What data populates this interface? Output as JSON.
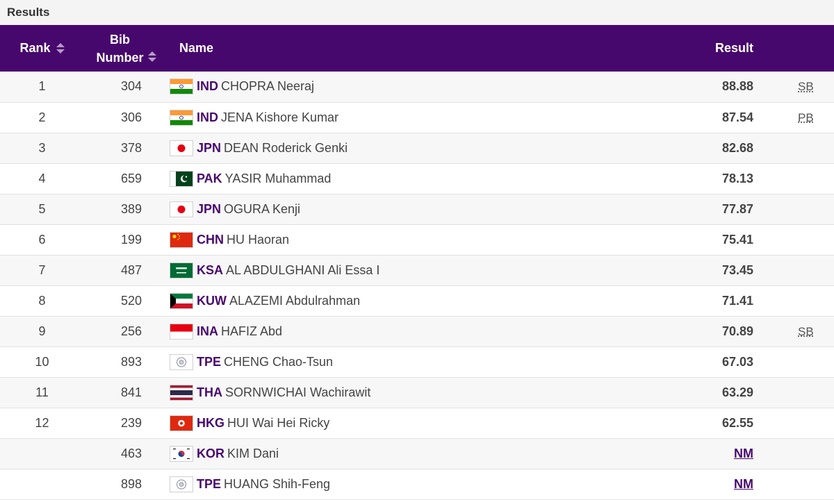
{
  "header": {
    "title": "Results"
  },
  "columns": {
    "rank": "Rank",
    "bib_line1": "Bib",
    "bib_line2": "Number",
    "name": "Name",
    "result": "Result"
  },
  "colors": {
    "header_bg": "#47086d",
    "accent": "#47086d"
  },
  "rows": [
    {
      "rank": "1",
      "bib": "304",
      "country": "IND",
      "flag": "ind",
      "name": "CHOPRA Neeraj",
      "result": "88.88",
      "note": "SB"
    },
    {
      "rank": "2",
      "bib": "306",
      "country": "IND",
      "flag": "ind",
      "name": "JENA Kishore Kumar",
      "result": "87.54",
      "note": "PB"
    },
    {
      "rank": "3",
      "bib": "378",
      "country": "JPN",
      "flag": "jpn",
      "name": "DEAN Roderick Genki",
      "result": "82.68",
      "note": ""
    },
    {
      "rank": "4",
      "bib": "659",
      "country": "PAK",
      "flag": "pak",
      "name": "YASIR Muhammad",
      "result": "78.13",
      "note": ""
    },
    {
      "rank": "5",
      "bib": "389",
      "country": "JPN",
      "flag": "jpn",
      "name": "OGURA Kenji",
      "result": "77.87",
      "note": ""
    },
    {
      "rank": "6",
      "bib": "199",
      "country": "CHN",
      "flag": "chn",
      "name": "HU Haoran",
      "result": "75.41",
      "note": ""
    },
    {
      "rank": "7",
      "bib": "487",
      "country": "KSA",
      "flag": "ksa",
      "name": "AL ABDULGHANI Ali Essa I",
      "result": "73.45",
      "note": ""
    },
    {
      "rank": "8",
      "bib": "520",
      "country": "KUW",
      "flag": "kuw",
      "name": "ALAZEMI Abdulrahman",
      "result": "71.41",
      "note": ""
    },
    {
      "rank": "9",
      "bib": "256",
      "country": "INA",
      "flag": "ina",
      "name": "HAFIZ Abd",
      "result": "70.89",
      "note": "SB"
    },
    {
      "rank": "10",
      "bib": "893",
      "country": "TPE",
      "flag": "tpe",
      "name": "CHENG Chao-Tsun",
      "result": "67.03",
      "note": ""
    },
    {
      "rank": "11",
      "bib": "841",
      "country": "THA",
      "flag": "tha",
      "name": "SORNWICHAI Wachirawit",
      "result": "63.29",
      "note": ""
    },
    {
      "rank": "12",
      "bib": "239",
      "country": "HKG",
      "flag": "hkg",
      "name": "HUI Wai Hei Ricky",
      "result": "62.55",
      "note": ""
    },
    {
      "rank": "",
      "bib": "463",
      "country": "KOR",
      "flag": "kor",
      "name": "KIM Dani",
      "result": "NM",
      "note": ""
    },
    {
      "rank": "",
      "bib": "898",
      "country": "TPE",
      "flag": "tpe",
      "name": "HUANG Shih-Feng",
      "result": "NM",
      "note": ""
    }
  ]
}
